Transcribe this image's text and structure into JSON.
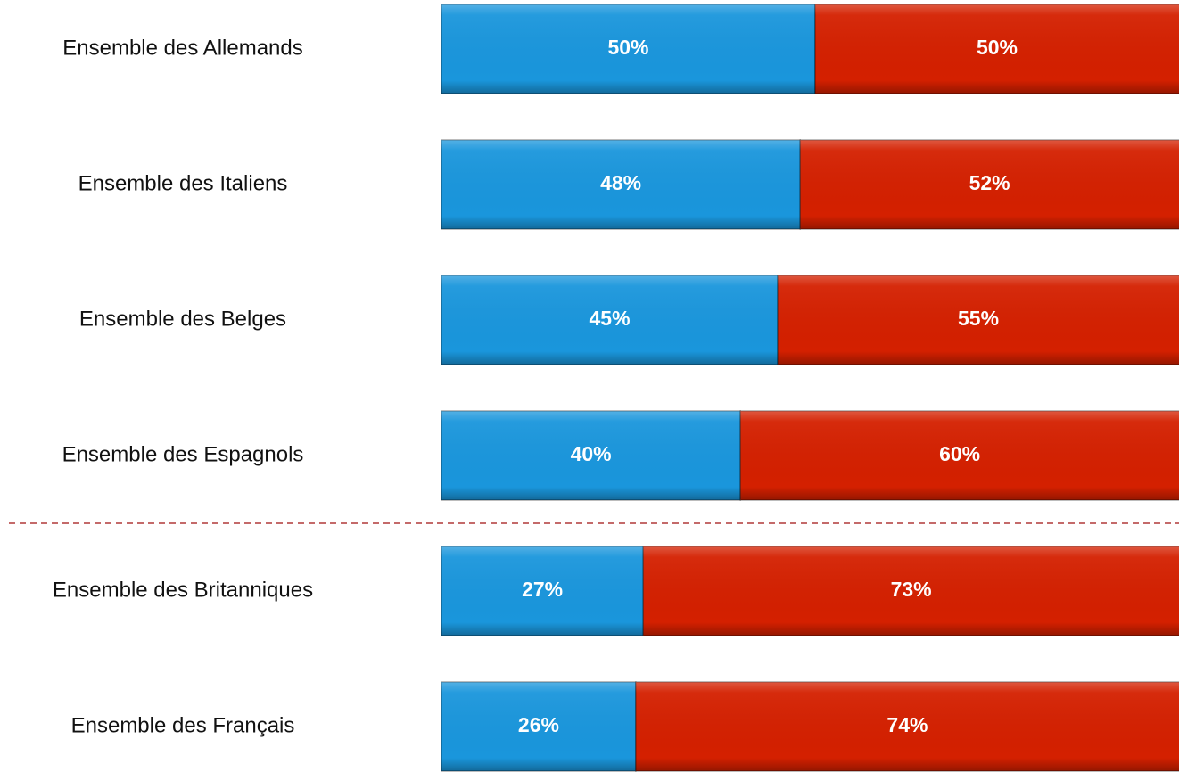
{
  "chart_data": {
    "type": "bar",
    "orientation": "horizontal",
    "stacked": true,
    "categories": [
      "Ensemble des Allemands",
      "Ensemble des Italiens",
      "Ensemble des Belges",
      "Ensemble des Espagnols",
      "Ensemble des Britanniques",
      "Ensemble des Français"
    ],
    "xlim": [
      0,
      100
    ],
    "series": [
      {
        "color": "#1a96dc",
        "values": [
          50,
          48,
          45,
          40,
          27,
          26
        ],
        "value_labels": [
          "50%",
          "48%",
          "45%",
          "40%",
          "27%",
          "26%"
        ]
      },
      {
        "color": "#d42000",
        "values": [
          50,
          52,
          55,
          60,
          73,
          74
        ],
        "value_labels": [
          "50%",
          "52%",
          "55%",
          "60%",
          "73%",
          "74%"
        ]
      }
    ]
  }
}
